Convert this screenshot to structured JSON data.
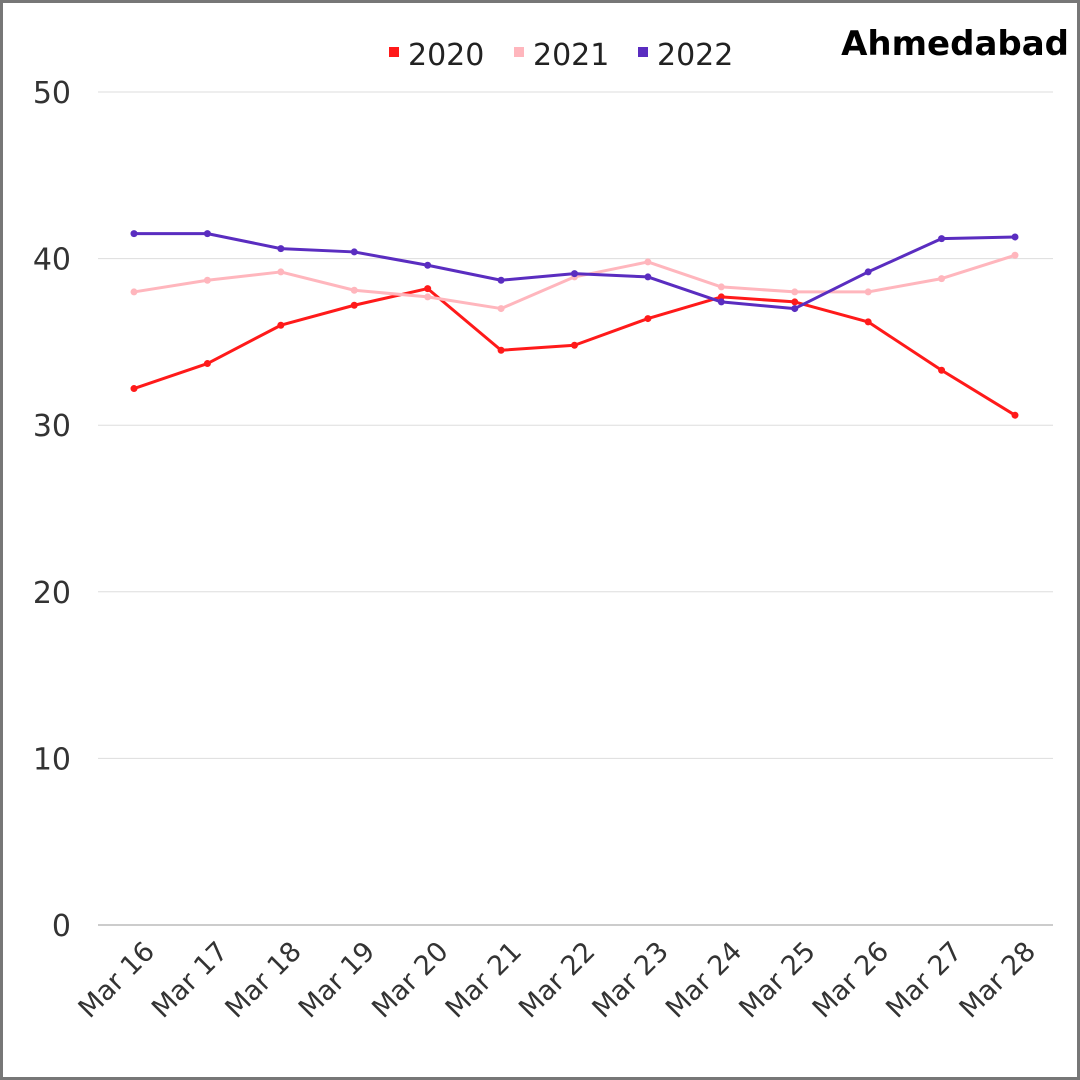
{
  "chart_data": {
    "type": "line",
    "title": "Ahmedabad",
    "xlabel": "",
    "ylabel": "",
    "ylim": [
      0,
      50
    ],
    "yticks": [
      "0",
      "10",
      "20",
      "30",
      "40",
      "50"
    ],
    "grid": true,
    "legend_position": "top-center",
    "categories": [
      "Mar 16",
      "Mar 17",
      "Mar 18",
      "Mar 19",
      "Mar 20",
      "Mar 21",
      "Mar 22",
      "Mar 23",
      "Mar 24",
      "Mar 25",
      "Mar 26",
      "Mar 27",
      "Mar 28"
    ],
    "series": [
      {
        "name": "2020",
        "color": "#ff1a1a",
        "values": [
          32.2,
          33.7,
          36.0,
          37.2,
          38.2,
          34.5,
          34.8,
          36.4,
          37.7,
          37.4,
          36.2,
          33.3,
          30.6
        ]
      },
      {
        "name": "2021",
        "color": "#ffb6bd",
        "values": [
          38.0,
          38.7,
          39.2,
          38.1,
          37.7,
          37.0,
          38.9,
          39.8,
          38.3,
          38.0,
          38.0,
          38.8,
          40.2
        ]
      },
      {
        "name": "2022",
        "color": "#5a2dc0",
        "values": [
          41.5,
          41.5,
          40.6,
          40.4,
          39.6,
          38.7,
          39.1,
          38.9,
          37.4,
          37.0,
          39.2,
          41.2,
          41.3
        ]
      }
    ]
  }
}
